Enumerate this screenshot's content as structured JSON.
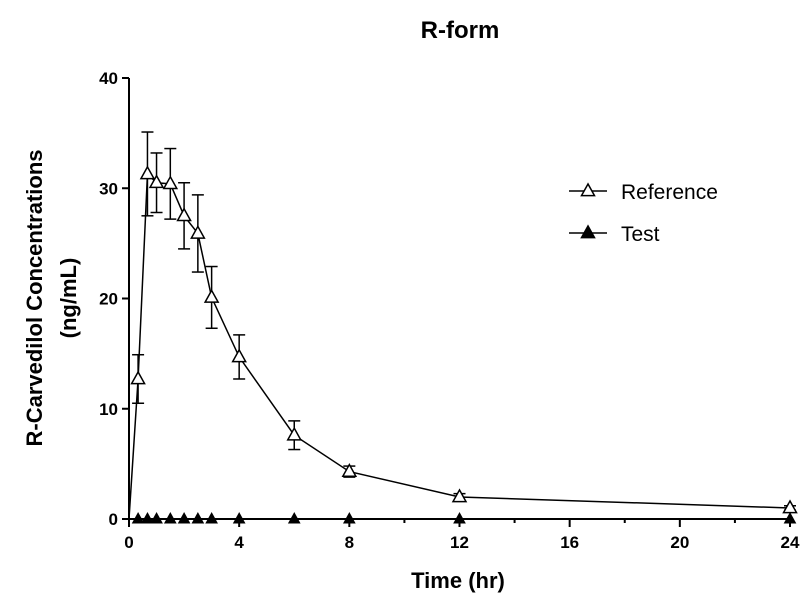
{
  "chart_data": {
    "type": "line",
    "title": "R-form",
    "xlabel": "Time (hr)",
    "ylabel_line1": "R-Carvedilol Concentrations",
    "ylabel_line2": "(ng/mL)",
    "xlim": [
      0,
      24
    ],
    "ylim": [
      0,
      40
    ],
    "xticks": [
      0,
      4,
      8,
      12,
      16,
      20,
      24
    ],
    "yticks": [
      0,
      10,
      20,
      30,
      40
    ],
    "grid": false,
    "legend_placement": "top-right",
    "series": [
      {
        "name": "Reference",
        "marker": "open-triangle",
        "color": "#000000",
        "x": [
          0,
          0.33,
          0.67,
          1,
          1.5,
          2,
          2.5,
          3,
          4,
          6,
          8,
          12,
          24
        ],
        "y": [
          0,
          12.7,
          31.3,
          30.5,
          30.4,
          27.5,
          25.9,
          20.1,
          14.7,
          7.6,
          4.3,
          2.0,
          1.0
        ],
        "error": [
          0,
          2.2,
          3.8,
          2.7,
          3.2,
          3.0,
          3.5,
          2.8,
          2.0,
          1.3,
          0.5,
          0.3,
          0.2
        ]
      },
      {
        "name": "Test",
        "marker": "filled-triangle",
        "color": "#000000",
        "x": [
          0,
          0.33,
          0.67,
          1,
          1.5,
          2,
          2.5,
          3,
          4,
          6,
          8,
          12,
          24
        ],
        "y": [
          0,
          0,
          0,
          0,
          0,
          0,
          0,
          0,
          0,
          0,
          0,
          0,
          0
        ]
      }
    ]
  }
}
